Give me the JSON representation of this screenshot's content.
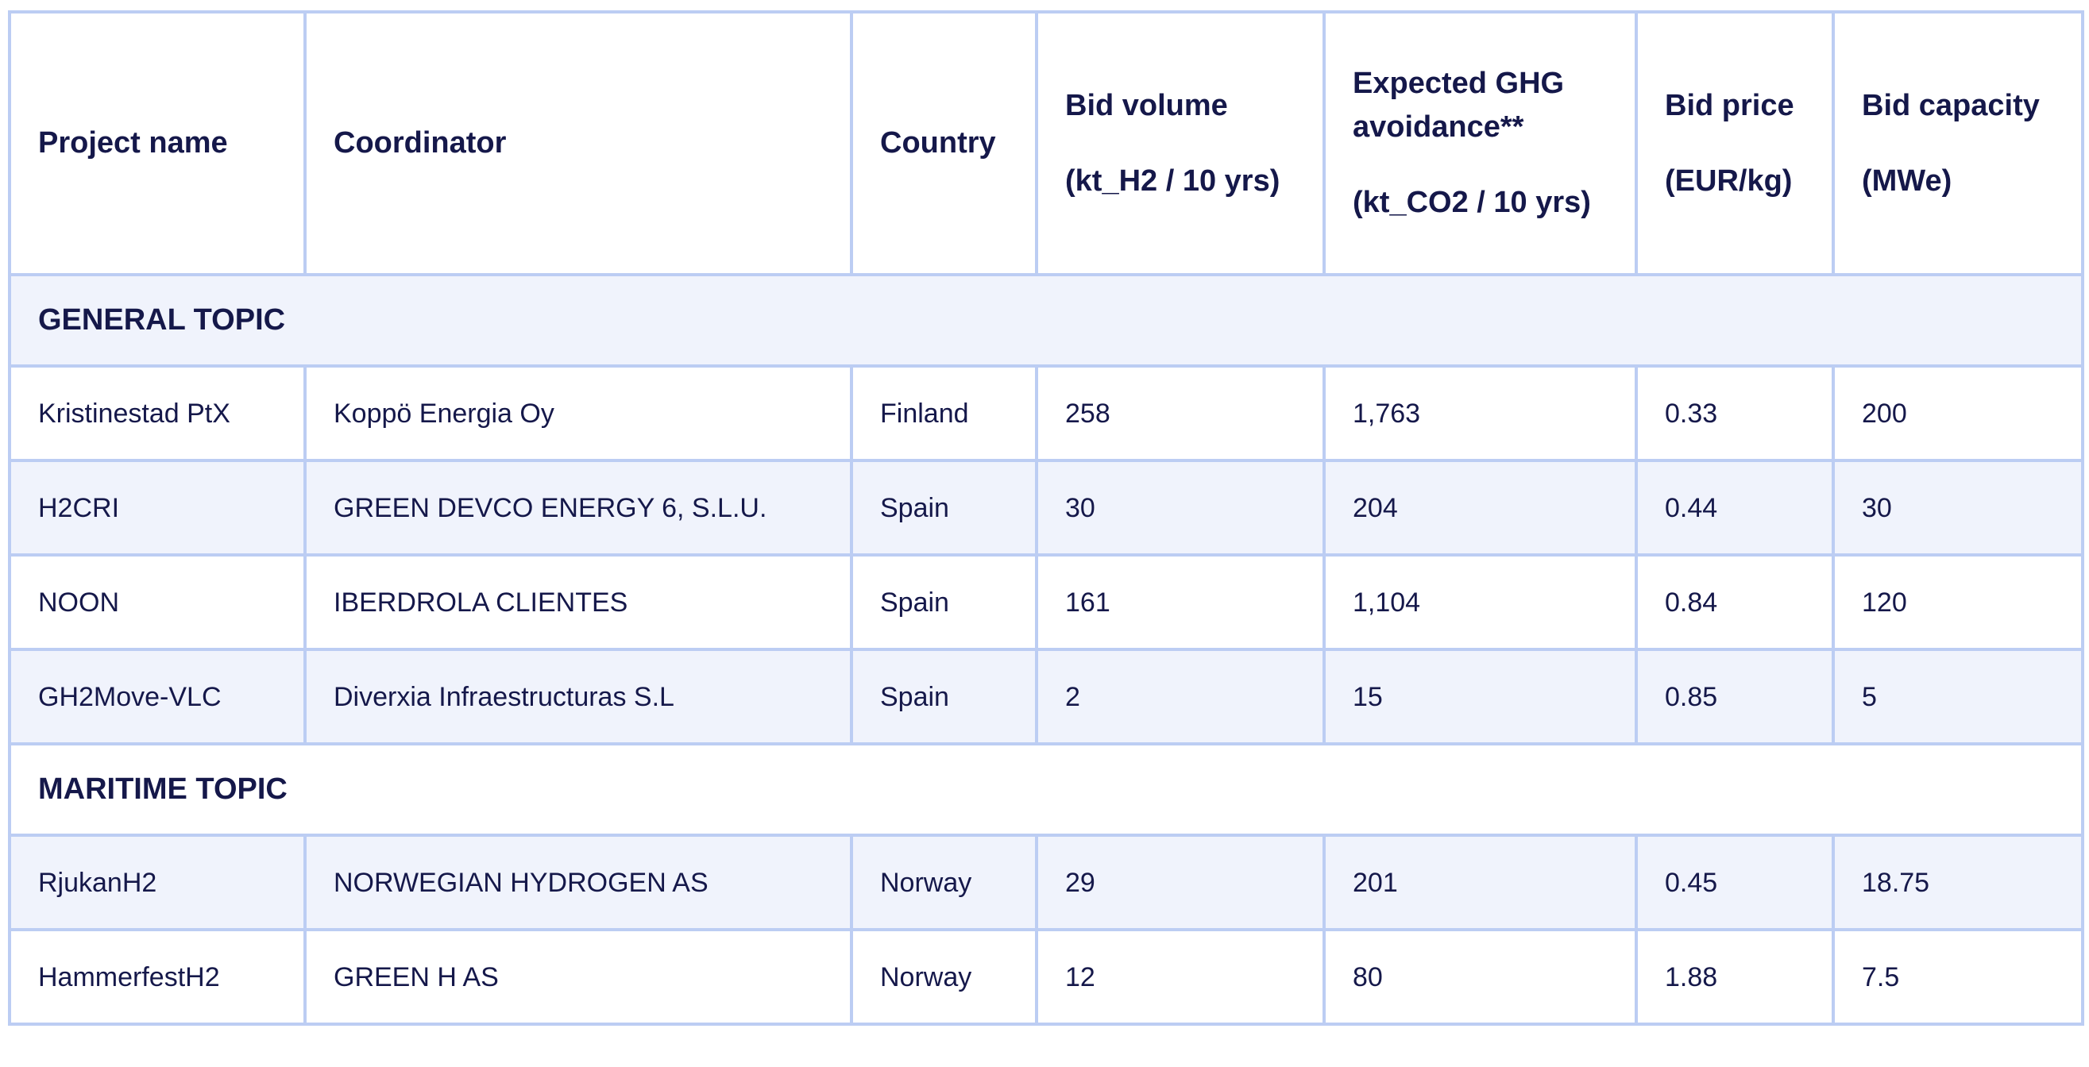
{
  "colors": {
    "text": "#15184a",
    "border": "#bccdf3",
    "shaded_row_background": "#f0f3fc",
    "page_background": "#ffffff"
  },
  "table": {
    "columns": [
      {
        "label": "Project name",
        "unit": ""
      },
      {
        "label": "Coordinator",
        "unit": ""
      },
      {
        "label": "Country",
        "unit": ""
      },
      {
        "label": "Bid volume",
        "unit": "(kt_H2 / 10 yrs)"
      },
      {
        "label": "Expected GHG avoidance**",
        "unit": "(kt_CO2 / 10 yrs)"
      },
      {
        "label": "Bid price",
        "unit": "(EUR/kg)"
      },
      {
        "label": "Bid capacity",
        "unit": "(MWe)"
      }
    ],
    "sections": [
      {
        "title": "GENERAL TOPIC",
        "rows": [
          [
            "Kristinestad PtX",
            "Koppö Energia Oy",
            "Finland",
            "258",
            "1,763",
            "0.33",
            "200"
          ],
          [
            "H2CRI",
            "GREEN DEVCO ENERGY 6, S.L.U.",
            "Spain",
            "30",
            "204",
            "0.44",
            "30"
          ],
          [
            "NOON",
            "IBERDROLA CLIENTES",
            "Spain",
            "161",
            "1,104",
            "0.84",
            "120"
          ],
          [
            "GH2Move-VLC",
            "Diverxia Infraestructuras S.L",
            "Spain",
            "2",
            "15",
            "0.85",
            "5"
          ]
        ]
      },
      {
        "title": "MARITIME TOPIC",
        "rows": [
          [
            "RjukanH2",
            "NORWEGIAN HYDROGEN AS",
            "Norway",
            "29",
            "201",
            "0.45",
            "18.75"
          ],
          [
            "HammerfestH2",
            "GREEN H AS",
            "Norway",
            "12",
            "80",
            "1.88",
            "7.5"
          ]
        ]
      }
    ]
  },
  "chart_data": {
    "type": "table",
    "title": "",
    "columns": [
      "Project name",
      "Coordinator",
      "Country",
      "Bid volume (kt_H2 / 10 yrs)",
      "Expected GHG avoidance** (kt_CO2 / 10 yrs)",
      "Bid price (EUR/kg)",
      "Bid capacity (MWe)"
    ],
    "groups": [
      {
        "name": "GENERAL TOPIC",
        "rows": [
          [
            "Kristinestad PtX",
            "Koppö Energia Oy",
            "Finland",
            258,
            1763,
            0.33,
            200
          ],
          [
            "H2CRI",
            "GREEN DEVCO ENERGY 6, S.L.U.",
            "Spain",
            30,
            204,
            0.44,
            30
          ],
          [
            "NOON",
            "IBERDROLA CLIENTES",
            "Spain",
            161,
            1104,
            0.84,
            120
          ],
          [
            "GH2Move-VLC",
            "Diverxia Infraestructuras S.L",
            "Spain",
            2,
            15,
            0.85,
            5
          ]
        ]
      },
      {
        "name": "MARITIME TOPIC",
        "rows": [
          [
            "RjukanH2",
            "NORWEGIAN HYDROGEN AS",
            "Norway",
            29,
            201,
            0.45,
            18.75
          ],
          [
            "HammerfestH2",
            "GREEN H AS",
            "Norway",
            12,
            80,
            1.88,
            7.5
          ]
        ]
      }
    ]
  }
}
